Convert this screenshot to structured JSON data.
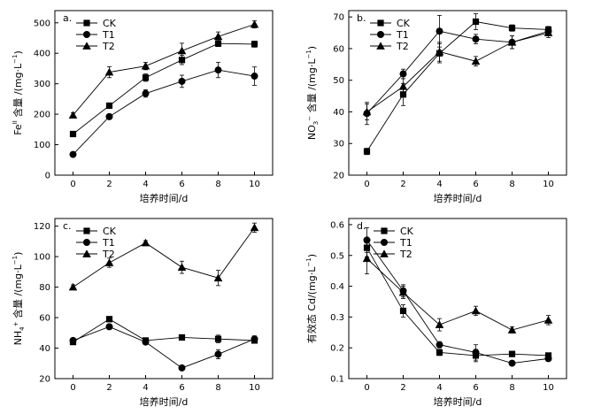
{
  "chart_data": [
    {
      "type": "line",
      "panel_label": "a.",
      "ylabel_main": "Fe",
      "ylabel_sup": "II",
      "ylabel_rest": " 含量 /(mg·L",
      "ylabel_exp": "−1",
      "ylabel_close": ")",
      "xlabel": "培养时间/d",
      "x": [
        0,
        2,
        4,
        6,
        8,
        10
      ],
      "xlim": [
        -1,
        11
      ],
      "ylim": [
        0,
        540
      ],
      "xticks": [
        0,
        2,
        4,
        6,
        8,
        10
      ],
      "yticks": [
        0,
        100,
        200,
        300,
        400,
        500
      ],
      "legend_position": "top-left",
      "series": [
        {
          "name": "CK",
          "marker": "square",
          "values": [
            135,
            228,
            320,
            378,
            432,
            430
          ],
          "errors": [
            6,
            8,
            12,
            15,
            10,
            10
          ]
        },
        {
          "name": "T1",
          "marker": "circle",
          "values": [
            68,
            192,
            268,
            308,
            345,
            325
          ],
          "errors": [
            6,
            8,
            12,
            20,
            25,
            30
          ]
        },
        {
          "name": "T2",
          "marker": "triangle",
          "values": [
            197,
            338,
            358,
            408,
            455,
            495
          ],
          "errors": [
            8,
            18,
            12,
            25,
            15,
            12
          ]
        }
      ]
    },
    {
      "type": "line",
      "panel_label": "b.",
      "ylabel_main": "NO",
      "ylabel_sub": "3",
      "ylabel_sup2": "−",
      "ylabel_rest": " 含量 /(mg·L",
      "ylabel_exp": "−1",
      "ylabel_close": ")",
      "xlabel": "培养时间/d",
      "x": [
        0,
        2,
        4,
        6,
        8,
        10
      ],
      "xlim": [
        -1,
        11
      ],
      "ylim": [
        20,
        72
      ],
      "xticks": [
        0,
        2,
        4,
        6,
        8,
        10
      ],
      "yticks": [
        20,
        30,
        40,
        50,
        60,
        70
      ],
      "legend_position": "top-left",
      "series": [
        {
          "name": "CK",
          "marker": "square",
          "values": [
            27.5,
            45.5,
            58.5,
            68.5,
            66.5,
            66.0
          ],
          "errors": [
            1.0,
            3.5,
            3.0,
            2.5,
            1.0,
            1.0
          ]
        },
        {
          "name": "T1",
          "marker": "circle",
          "values": [
            39.5,
            52.0,
            65.5,
            63.0,
            62.0,
            65.5
          ],
          "errors": [
            3.5,
            1.5,
            5.0,
            1.5,
            2.0,
            1.5
          ]
        },
        {
          "name": "T2",
          "marker": "triangle",
          "values": [
            40.0,
            48.0,
            59.0,
            56.0,
            62.0,
            65.0
          ],
          "errors": [
            2.5,
            2.5,
            3.0,
            1.5,
            2.0,
            1.5
          ]
        }
      ]
    },
    {
      "type": "line",
      "panel_label": "c.",
      "ylabel_main": "NH",
      "ylabel_sub": "4",
      "ylabel_sup2": "+",
      "ylabel_rest": " 含量 /(mg·L",
      "ylabel_exp": "−1",
      "ylabel_close": ")",
      "xlabel": "培养时间/d",
      "x": [
        0,
        2,
        4,
        6,
        8,
        10
      ],
      "xlim": [
        -1,
        11
      ],
      "ylim": [
        20,
        125
      ],
      "xticks": [
        0,
        2,
        4,
        6,
        8,
        10
      ],
      "yticks": [
        20,
        40,
        60,
        80,
        100,
        120
      ],
      "legend_position": "top-left",
      "series": [
        {
          "name": "CK",
          "marker": "square",
          "values": [
            44,
            59,
            45,
            47,
            46,
            45
          ],
          "errors": [
            1.5,
            1.5,
            1.5,
            1.0,
            2.5,
            1.5
          ]
        },
        {
          "name": "T1",
          "marker": "circle",
          "values": [
            45,
            54,
            44,
            27,
            36,
            46
          ],
          "errors": [
            1.5,
            1.5,
            1.5,
            1.5,
            3.0,
            2.0
          ]
        },
        {
          "name": "T2",
          "marker": "triangle",
          "values": [
            80,
            96,
            109,
            93,
            86,
            119
          ],
          "errors": [
            1.5,
            3.0,
            1.5,
            4.0,
            5.0,
            3.0
          ]
        }
      ]
    },
    {
      "type": "line",
      "panel_label": "d.",
      "ylabel_text": "有效态 Cd/(mg·L",
      "ylabel_exp": "−1",
      "ylabel_close": ")",
      "xlabel": "培养时间/d",
      "x": [
        0,
        2,
        4,
        6,
        8,
        10
      ],
      "xlim": [
        -1,
        11
      ],
      "ylim": [
        0.1,
        0.62
      ],
      "xticks": [
        0,
        2,
        4,
        6,
        8,
        10
      ],
      "yticks": [
        0.1,
        0.2,
        0.3,
        0.4,
        0.5,
        0.6
      ],
      "legend_position": "top-center",
      "series": [
        {
          "name": "CK",
          "marker": "square",
          "values": [
            0.525,
            0.32,
            0.185,
            0.175,
            0.18,
            0.175
          ],
          "errors": [
            0.03,
            0.02,
            0.01,
            0.02,
            0.005,
            0.008
          ]
        },
        {
          "name": "T1",
          "marker": "circle",
          "values": [
            0.55,
            0.385,
            0.21,
            0.185,
            0.15,
            0.165
          ],
          "errors": [
            0.04,
            0.02,
            0.01,
            0.025,
            0.005,
            0.008
          ]
        },
        {
          "name": "T2",
          "marker": "triangle",
          "values": [
            0.49,
            0.38,
            0.275,
            0.32,
            0.258,
            0.29
          ],
          "errors": [
            0.05,
            0.02,
            0.02,
            0.015,
            0.01,
            0.015
          ]
        }
      ]
    }
  ]
}
